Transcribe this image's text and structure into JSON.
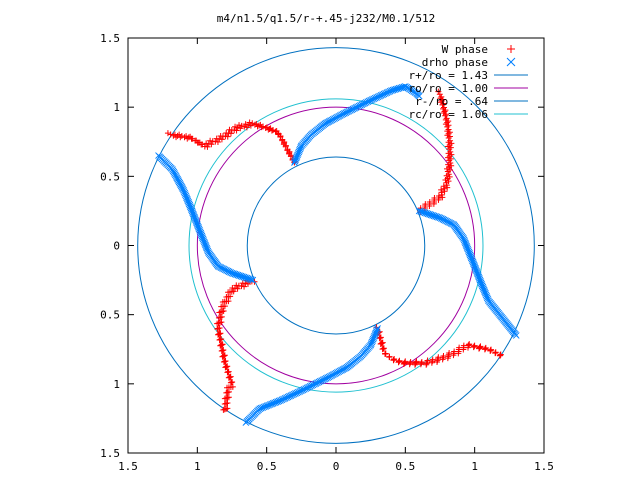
{
  "chart_data": {
    "type": "scatter",
    "title": "m4/n1.5/q1.5/r-+.45-j232/M0.1/512",
    "xlabel": "",
    "ylabel": "",
    "xlim": [
      -1.5,
      1.5
    ],
    "ylim": [
      -1.5,
      1.5
    ],
    "xtick_labels": [
      "1.5",
      "1",
      "0.5",
      "0",
      "0.5",
      "1",
      "1.5"
    ],
    "ytick_labels": [
      "1.5",
      "1",
      "0.5",
      "0",
      "0.5",
      "1",
      "1.5"
    ],
    "xtick_values": [
      -1.5,
      -1,
      -0.5,
      0,
      0.5,
      1,
      1.5
    ],
    "ytick_values": [
      1.5,
      1,
      0.5,
      0,
      -0.5,
      -1,
      -1.5
    ],
    "grid": false,
    "legend_position": "top-right",
    "legend": [
      {
        "label": "W phase",
        "marker": "+",
        "color": "#ff0000"
      },
      {
        "label": "drho phase",
        "marker": "x",
        "color": "#0080ff"
      },
      {
        "label": "r+/ro = 1.43",
        "line": true,
        "color": "#0070c0"
      },
      {
        "label": "ro/ro = 1.00",
        "line": true,
        "color": "#a000a0"
      },
      {
        "label": "r-/ro = .64",
        "line": true,
        "color": "#0070c0"
      },
      {
        "label": "rc/ro = 1.06",
        "line": true,
        "color": "#20c0d0"
      }
    ],
    "circles": [
      {
        "r": 1.43,
        "color": "#0070c0"
      },
      {
        "r": 1.0,
        "color": "#a000a0"
      },
      {
        "r": 0.64,
        "color": "#0070c0"
      },
      {
        "r": 1.06,
        "color": "#20c0d0"
      }
    ],
    "series": [
      {
        "name": "W phase",
        "color": "#ff0000",
        "marker": "+",
        "curves": [
          [
            [
              -1.2,
              0.8
            ],
            [
              -1.05,
              0.78
            ],
            [
              -0.95,
              0.72
            ],
            [
              -0.82,
              0.78
            ],
            [
              -0.72,
              0.85
            ],
            [
              -0.6,
              0.88
            ],
            [
              -0.5,
              0.85
            ],
            [
              -0.42,
              0.82
            ],
            [
              -0.38,
              0.75
            ],
            [
              -0.3,
              0.6
            ]
          ],
          [
            [
              0.75,
              1.1
            ],
            [
              0.78,
              0.98
            ],
            [
              0.8,
              0.9
            ],
            [
              0.82,
              0.75
            ],
            [
              0.82,
              0.6
            ],
            [
              0.8,
              0.45
            ],
            [
              0.75,
              0.35
            ],
            [
              0.6,
              0.25
            ]
          ],
          [
            [
              1.2,
              -0.8
            ],
            [
              1.1,
              -0.75
            ],
            [
              0.95,
              -0.72
            ],
            [
              0.85,
              -0.78
            ],
            [
              0.75,
              -0.82
            ],
            [
              0.65,
              -0.85
            ],
            [
              0.5,
              -0.85
            ],
            [
              0.42,
              -0.83
            ],
            [
              0.35,
              -0.78
            ],
            [
              0.3,
              -0.6
            ]
          ],
          [
            [
              -0.8,
              -1.2
            ],
            [
              -0.78,
              -1.05
            ],
            [
              -0.75,
              -1.0
            ],
            [
              -0.8,
              -0.85
            ],
            [
              -0.85,
              -0.6
            ],
            [
              -0.82,
              -0.45
            ],
            [
              -0.75,
              -0.32
            ],
            [
              -0.6,
              -0.25
            ]
          ]
        ]
      },
      {
        "name": "drho phase",
        "color": "#0080ff",
        "marker": "x",
        "curves": [
          [
            [
              -0.3,
              0.6
            ],
            [
              -0.25,
              0.72
            ],
            [
              -0.18,
              0.8
            ],
            [
              -0.08,
              0.88
            ],
            [
              0.05,
              0.95
            ],
            [
              0.25,
              1.05
            ],
            [
              0.4,
              1.12
            ],
            [
              0.5,
              1.15
            ],
            [
              0.58,
              1.1
            ],
            [
              0.6,
              1.08
            ]
          ],
          [
            [
              0.6,
              0.25
            ],
            [
              0.75,
              0.2
            ],
            [
              0.85,
              0.15
            ],
            [
              0.92,
              0.05
            ],
            [
              0.98,
              -0.1
            ],
            [
              1.05,
              -0.28
            ],
            [
              1.1,
              -0.4
            ],
            [
              1.18,
              -0.5
            ],
            [
              1.3,
              -0.65
            ]
          ],
          [
            [
              0.3,
              -0.6
            ],
            [
              0.25,
              -0.72
            ],
            [
              0.18,
              -0.8
            ],
            [
              0.08,
              -0.88
            ],
            [
              -0.05,
              -0.95
            ],
            [
              -0.25,
              -1.05
            ],
            [
              -0.4,
              -1.12
            ],
            [
              -0.55,
              -1.18
            ],
            [
              -0.65,
              -1.28
            ]
          ],
          [
            [
              -0.6,
              -0.25
            ],
            [
              -0.75,
              -0.2
            ],
            [
              -0.85,
              -0.15
            ],
            [
              -0.92,
              -0.05
            ],
            [
              -0.98,
              0.1
            ],
            [
              -1.05,
              0.28
            ],
            [
              -1.1,
              0.4
            ],
            [
              -1.18,
              0.55
            ],
            [
              -1.28,
              0.65
            ]
          ]
        ]
      }
    ]
  }
}
